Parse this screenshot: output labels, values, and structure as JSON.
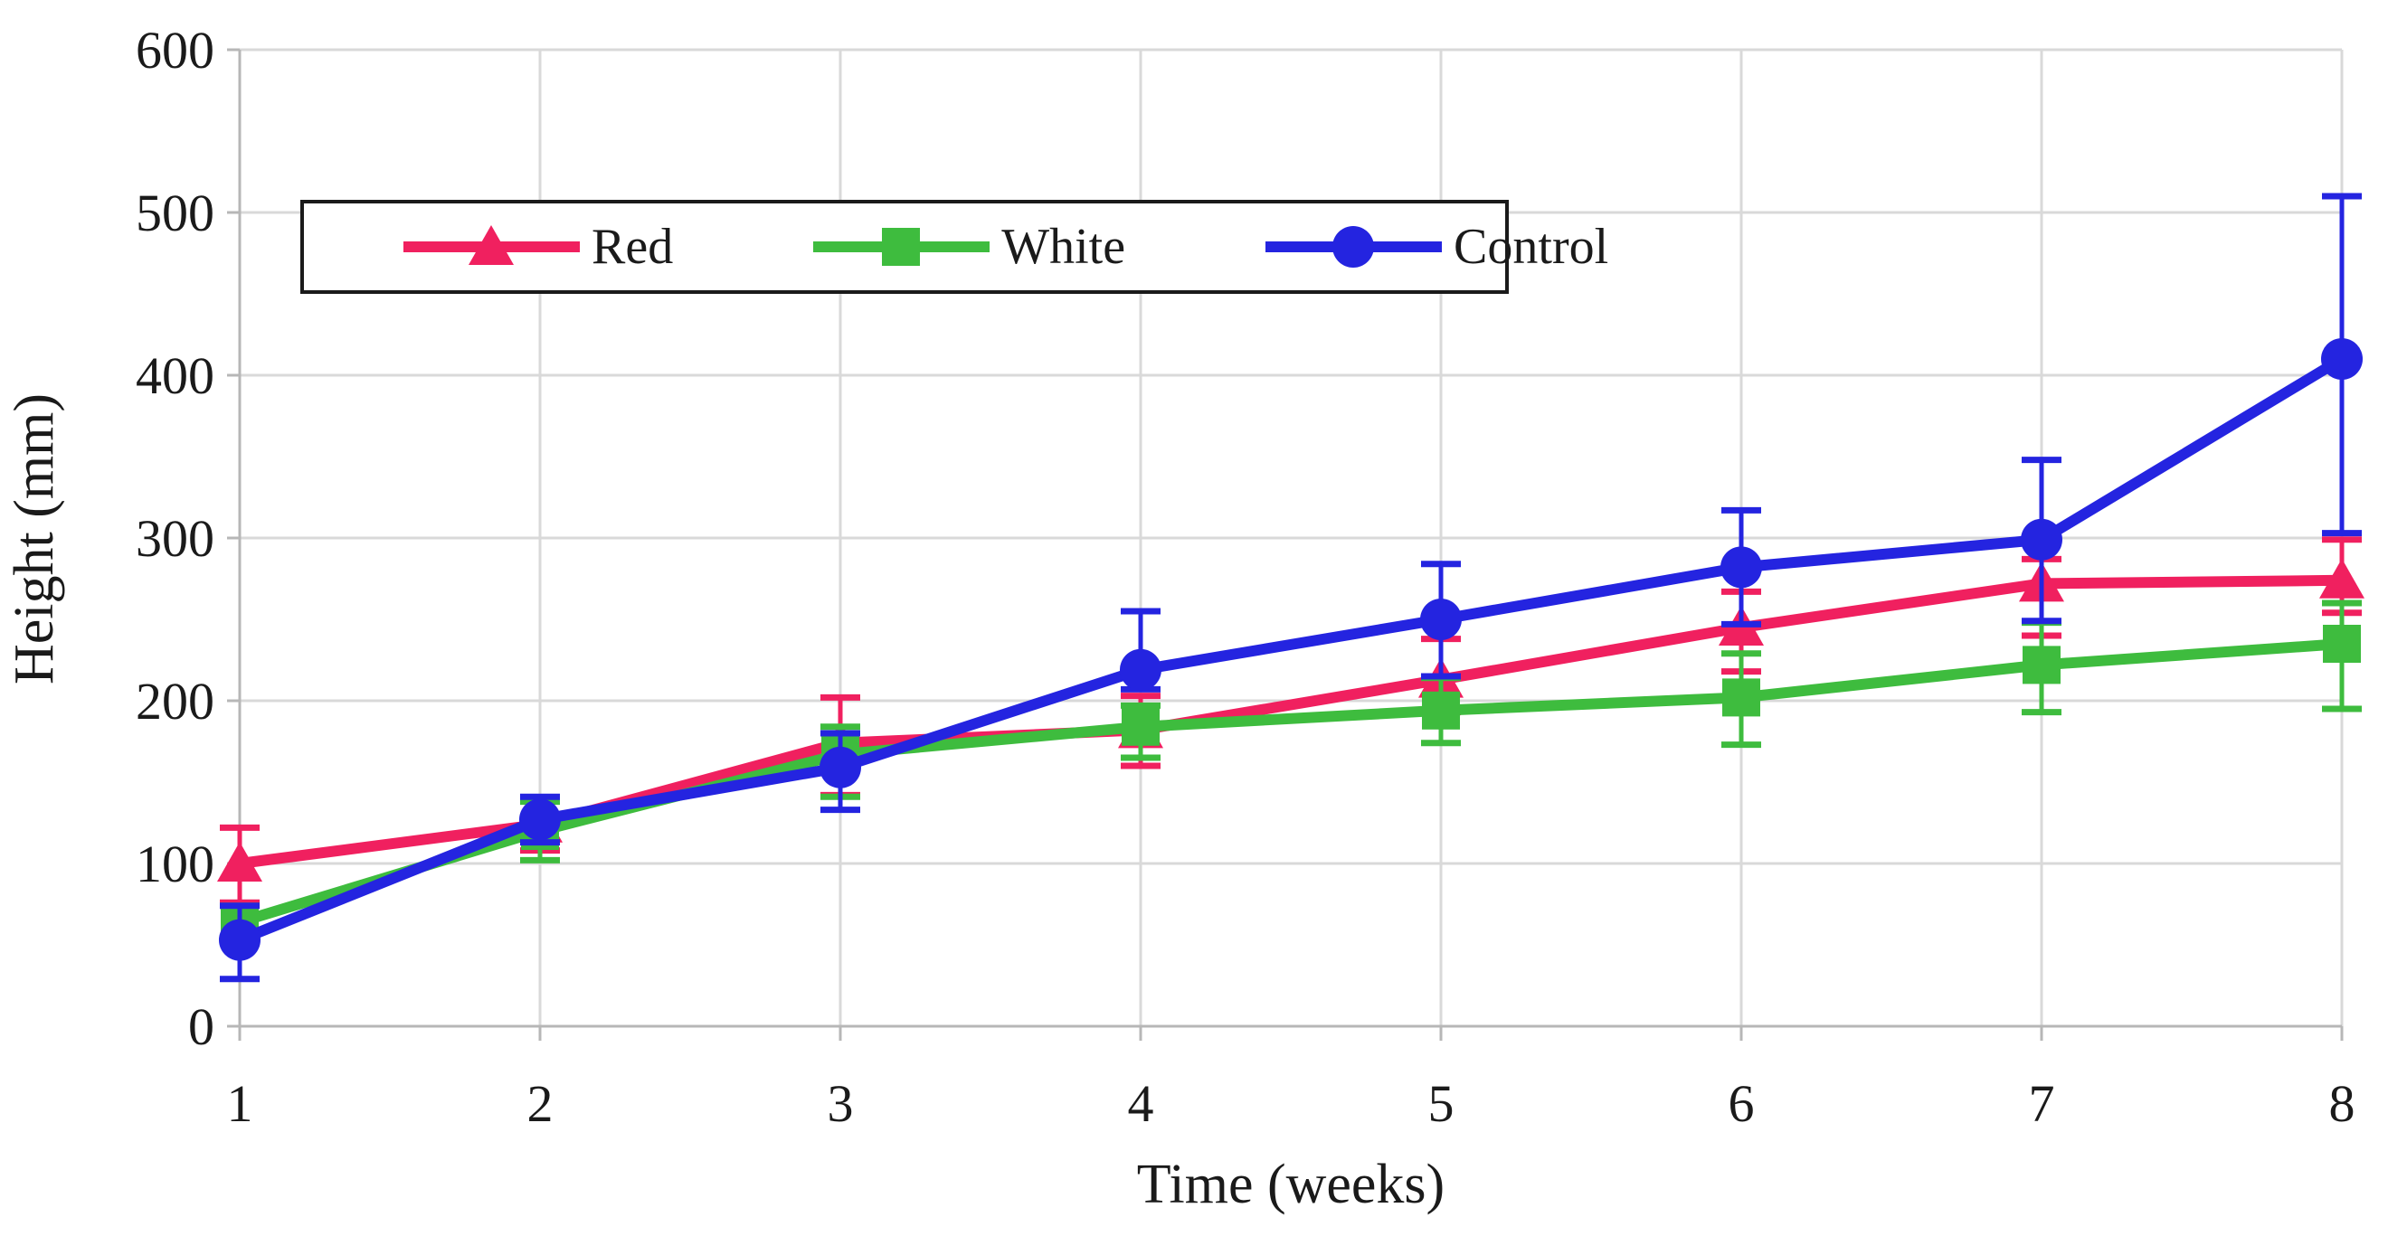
{
  "background_color": "#ffffff",
  "grid_color": "#d9d9d9",
  "axis_color": "#b7b7b7",
  "text_color": "#1a1a1a",
  "chart_data": {
    "type": "line",
    "title": "",
    "xlabel": "Time (weeks)",
    "ylabel": "Height (mm)",
    "x": [
      1,
      2,
      3,
      4,
      5,
      6,
      7,
      8
    ],
    "xtick_labels": [
      "1",
      "2",
      "3",
      "4",
      "5",
      "6",
      "7",
      "8"
    ],
    "yticks": [
      0,
      100,
      200,
      300,
      400,
      500,
      600
    ],
    "ylim": [
      0,
      600
    ],
    "grid": true,
    "error_bars": true,
    "legend_position": "top-left-inside",
    "series": [
      {
        "name": "Red",
        "color": "#f0205f",
        "marker": "triangle",
        "values": [
          100,
          124,
          174,
          182,
          213,
          245,
          272,
          274
        ],
        "err_up": [
          22,
          15,
          28,
          21,
          25,
          22,
          15,
          25
        ],
        "err_down": [
          24,
          16,
          32,
          22,
          20,
          27,
          32,
          20
        ]
      },
      {
        "name": "White",
        "color": "#3ebc3e",
        "marker": "square",
        "values": [
          64,
          120,
          167,
          184,
          194,
          202,
          222,
          235
        ],
        "err_up": [
          10,
          18,
          17,
          13,
          20,
          27,
          26,
          25
        ],
        "err_down": [
          10,
          18,
          26,
          19,
          20,
          29,
          29,
          40
        ]
      },
      {
        "name": "Control",
        "color": "#2424e0",
        "marker": "circle",
        "values": [
          53,
          127,
          159,
          219,
          250,
          282,
          299,
          410
        ],
        "err_up": [
          21,
          14,
          21,
          36,
          34,
          35,
          49,
          100
        ],
        "err_down": [
          24,
          14,
          26,
          12,
          35,
          35,
          50,
          107
        ]
      }
    ]
  }
}
